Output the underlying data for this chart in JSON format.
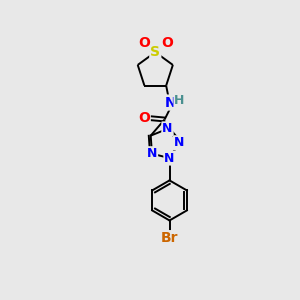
{
  "background_color": "#e8e8e8",
  "bond_color": "#000000",
  "atom_colors": {
    "N": "#0000ff",
    "O": "#ff0000",
    "S": "#cccc00",
    "Br": "#cc6600",
    "H": "#4a9090",
    "C": "#000000"
  },
  "figsize": [
    3.0,
    3.0
  ],
  "dpi": 100
}
